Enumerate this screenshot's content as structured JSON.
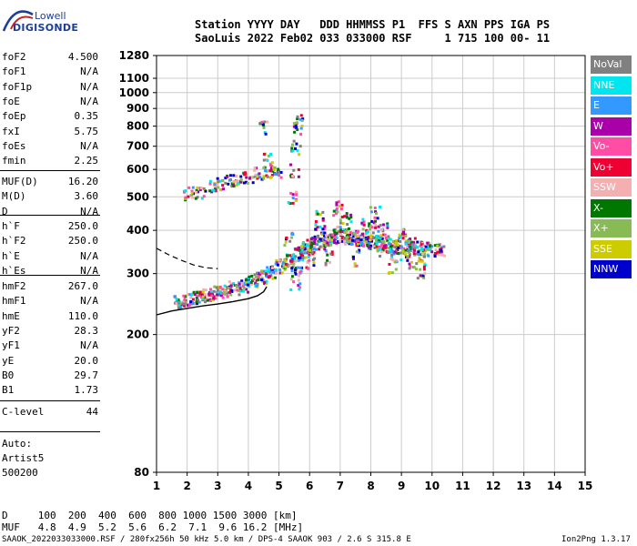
{
  "logo": {
    "top": "Lowell",
    "bottom": "DIGISONDE"
  },
  "header": {
    "line1": "Station YYYY DAY   DDD HHMMSS P1  FFS S AXN PPS IGA PS",
    "line2": "SaoLuis 2022 Feb02 033 033000 RSF     1 715 100 00- 11"
  },
  "params": [
    {
      "name": "foF2",
      "value": "4.500"
    },
    {
      "name": "foF1",
      "value": "N/A"
    },
    {
      "name": "foF1p",
      "value": "N/A"
    },
    {
      "name": "foE",
      "value": "N/A"
    },
    {
      "name": "foEp",
      "value": "0.35"
    },
    {
      "name": "fxI",
      "value": "5.75"
    },
    {
      "name": "foEs",
      "value": "N/A"
    },
    {
      "name": "fmin",
      "value": "2.25"
    },
    {
      "name": "MUF(D)",
      "value": "16.20"
    },
    {
      "name": "M(D)",
      "value": "3.60"
    },
    {
      "name": "D",
      "value": "N/A"
    },
    {
      "name": "h`F",
      "value": "250.0"
    },
    {
      "name": "h`F2",
      "value": "250.0"
    },
    {
      "name": "h`E",
      "value": "N/A"
    },
    {
      "name": "h`Es",
      "value": "N/A"
    },
    {
      "name": "hmF2",
      "value": "267.0"
    },
    {
      "name": "hmF1",
      "value": "N/A"
    },
    {
      "name": "hmE",
      "value": "110.0"
    },
    {
      "name": "yF2",
      "value": "28.3"
    },
    {
      "name": "yF1",
      "value": "N/A"
    },
    {
      "name": "yE",
      "value": "20.0"
    },
    {
      "name": "B0",
      "value": "29.7"
    },
    {
      "name": "B1",
      "value": "1.73"
    },
    {
      "name": "C-level",
      "value": "44"
    }
  ],
  "auto": {
    "line1": "Auto:",
    "line2": "Artist5",
    "line3": "500200"
  },
  "legend": [
    {
      "label": "NoVal",
      "color": "#808080",
      "text_color": "#ffffff"
    },
    {
      "label": "NNE",
      "color": "#00e5ee",
      "text_color": "#ffffff"
    },
    {
      "label": "E",
      "color": "#3399ff",
      "text_color": "#ffffff"
    },
    {
      "label": "W",
      "color": "#aa00aa",
      "text_color": "#ffffff"
    },
    {
      "label": "Vo-",
      "color": "#ff4da6",
      "text_color": "#ffffff"
    },
    {
      "label": "Vo+",
      "color": "#ee0033",
      "text_color": "#ffffff"
    },
    {
      "label": "SSW",
      "color": "#f4b0b0",
      "text_color": "#ffffff"
    },
    {
      "label": "X-",
      "color": "#007700",
      "text_color": "#ffffff"
    },
    {
      "label": "X+",
      "color": "#88bb55",
      "text_color": "#ffffff"
    },
    {
      "label": "SSE",
      "color": "#cccc00",
      "text_color": "#ffffff"
    },
    {
      "label": "NNW",
      "color": "#0000cc",
      "text_color": "#ffffff"
    }
  ],
  "bottom": {
    "d_row": "D     100  200  400  600  800 1000 1500 3000 [km]",
    "muf_row": "MUF   4.8  4.9  5.2  5.6  6.2  7.1  9.6 16.2 [MHz]",
    "footer_left": "SAAOK_2022033033000.RSF / 280fx256h 50 kHz 5.0 km / DPS-4 SAAOK 903 / 2.6 S 315.8 E",
    "footer_right": "Ion2Png 1.3.17"
  },
  "chart_data": {
    "type": "scatter",
    "title": "",
    "xlabel": "",
    "ylabel": "",
    "xlim": [
      1,
      15
    ],
    "ylim": [
      80,
      1280
    ],
    "y_scale": "log",
    "x_ticks": [
      "1",
      "2",
      "3",
      "4",
      "5",
      "6",
      "7",
      "8",
      "9",
      "10",
      "11",
      "12",
      "13",
      "14",
      "15"
    ],
    "y_ticks": [
      80,
      200,
      300,
      400,
      500,
      600,
      700,
      800,
      900,
      1000,
      1100,
      1280
    ],
    "grid": true,
    "series": [
      {
        "color_key": "F2 trace (O-mode)",
        "points": [
          [
            1.7,
            250
          ],
          [
            2.0,
            255
          ],
          [
            2.3,
            258
          ],
          [
            2.6,
            262
          ],
          [
            2.9,
            266
          ],
          [
            3.2,
            270
          ],
          [
            3.5,
            275
          ],
          [
            3.8,
            280
          ],
          [
            4.1,
            288
          ],
          [
            4.4,
            296
          ],
          [
            4.7,
            305
          ],
          [
            5.0,
            318
          ],
          [
            5.3,
            330
          ],
          [
            5.6,
            345
          ],
          [
            5.9,
            360
          ],
          [
            6.2,
            372
          ],
          [
            6.5,
            380
          ],
          [
            6.8,
            385
          ],
          [
            7.1,
            388
          ],
          [
            7.4,
            385
          ],
          [
            7.7,
            380
          ],
          [
            8.0,
            372
          ],
          [
            8.3,
            368
          ],
          [
            8.6,
            365
          ],
          [
            8.9,
            362
          ],
          [
            9.2,
            360
          ],
          [
            9.5,
            358
          ],
          [
            9.8,
            355
          ],
          [
            10.2,
            352
          ]
        ]
      },
      {
        "color_key": "Spread F diffuse",
        "points": [
          [
            5.5,
            300
          ],
          [
            5.8,
            330
          ],
          [
            6.0,
            350
          ],
          [
            6.3,
            420
          ],
          [
            6.6,
            360
          ],
          [
            6.9,
            440
          ],
          [
            7.2,
            410
          ],
          [
            7.5,
            350
          ],
          [
            7.8,
            400
          ],
          [
            8.1,
            430
          ],
          [
            8.4,
            380
          ],
          [
            8.7,
            340
          ],
          [
            9.0,
            370
          ],
          [
            9.3,
            345
          ],
          [
            9.6,
            330
          ]
        ]
      },
      {
        "color_key": "Multi-hop trace",
        "points": [
          [
            2.0,
            515
          ],
          [
            2.4,
            520
          ],
          [
            2.8,
            540
          ],
          [
            3.1,
            552
          ],
          [
            3.4,
            560
          ],
          [
            3.7,
            570
          ],
          [
            4.0,
            578
          ],
          [
            4.3,
            585
          ],
          [
            4.6,
            592
          ],
          [
            4.9,
            600
          ]
        ]
      },
      {
        "color_key": "Vertical spread",
        "points": [
          [
            5.3,
            380
          ],
          [
            5.4,
            500
          ],
          [
            5.5,
            600
          ],
          [
            5.5,
            700
          ],
          [
            5.6,
            800
          ],
          [
            5.6,
            840
          ],
          [
            4.6,
            650
          ],
          [
            4.5,
            800
          ]
        ]
      }
    ],
    "profile_curve": [
      [
        1.0,
        228
      ],
      [
        1.5,
        234
      ],
      [
        2.0,
        238
      ],
      [
        2.5,
        242
      ],
      [
        3.0,
        245
      ],
      [
        3.5,
        249
      ],
      [
        4.0,
        254
      ],
      [
        4.3,
        259
      ],
      [
        4.5,
        266
      ],
      [
        4.6,
        275
      ]
    ],
    "dashed_curve": [
      [
        1.0,
        355
      ],
      [
        1.4,
        340
      ],
      [
        1.8,
        328
      ],
      [
        2.2,
        318
      ],
      [
        2.6,
        312
      ],
      [
        3.0,
        310
      ]
    ]
  }
}
